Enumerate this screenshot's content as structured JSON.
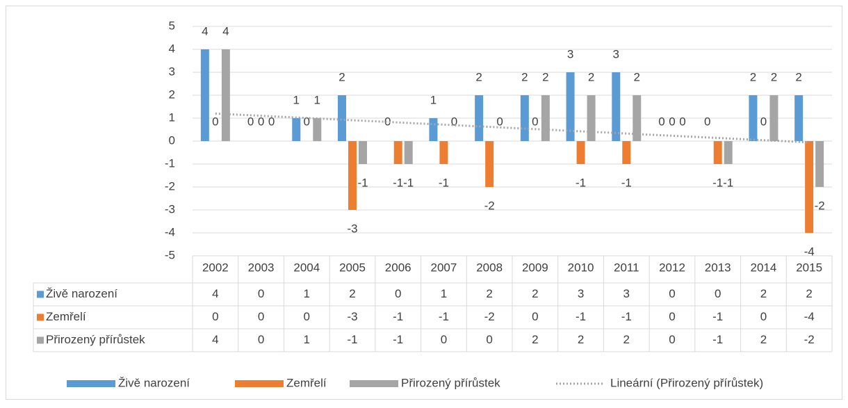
{
  "chart_data": {
    "type": "bar",
    "categories": [
      "2002",
      "2003",
      "2004",
      "2005",
      "2006",
      "2007",
      "2008",
      "2009",
      "2010",
      "2011",
      "2012",
      "2013",
      "2014",
      "2015"
    ],
    "series": [
      {
        "name": "Živě narození",
        "color": "#5b9bd5",
        "values": [
          4,
          0,
          1,
          2,
          0,
          1,
          2,
          2,
          3,
          3,
          0,
          0,
          2,
          2
        ]
      },
      {
        "name": "Zemřelí",
        "color": "#ed7d31",
        "values": [
          0,
          0,
          0,
          -3,
          -1,
          -1,
          -2,
          0,
          -1,
          -1,
          0,
          -1,
          0,
          -4
        ]
      },
      {
        "name": "Přirozený přírůstek",
        "color": "#a5a5a5",
        "values": [
          4,
          0,
          1,
          -1,
          -1,
          0,
          0,
          2,
          2,
          2,
          0,
          -1,
          2,
          -2
        ]
      }
    ],
    "trendline": {
      "name": "Lineární (Přirozený přírůstek)",
      "series": 2,
      "color": "#a5a5a5"
    },
    "ylim": [
      -5,
      5
    ],
    "yticks": [
      -5,
      -4,
      -3,
      -2,
      -1,
      0,
      1,
      2,
      3,
      4,
      5
    ],
    "grid": true,
    "data_table": true,
    "legend": "bottom"
  }
}
